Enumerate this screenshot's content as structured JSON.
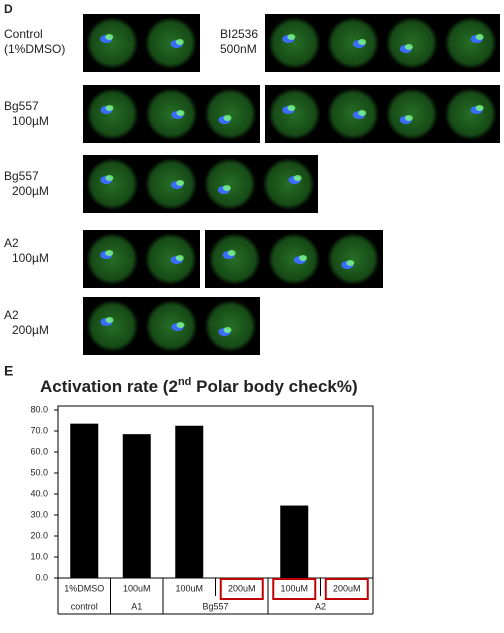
{
  "panel_d": {
    "label": "D",
    "rows": [
      {
        "label": [
          "Control",
          "(1%DMSO)"
        ]
      },
      {
        "label": [
          "BI2536",
          "500nM"
        ]
      },
      {
        "label": [
          "Bg557",
          "100µM"
        ]
      },
      {
        "label": [
          "Bg557",
          "200µM"
        ]
      },
      {
        "label": [
          "A2",
          "100µM"
        ]
      },
      {
        "label": [
          "A2",
          "200µM"
        ]
      }
    ]
  },
  "chart_data": {
    "type": "bar",
    "panel_label": "E",
    "title": [
      "Activation rate (2",
      "nd",
      " Polar body check%)"
    ],
    "categories": [
      "1%DMSO",
      "100uM",
      "100uM",
      "200uM",
      "100uM",
      "200uM"
    ],
    "groups": [
      "control",
      "A1",
      "Bg557",
      "Bg557",
      "A2",
      "A2"
    ],
    "values": [
      73.5,
      68.5,
      72.5,
      0,
      34.5,
      0
    ],
    "color": "#000000",
    "highlighted": [
      false,
      false,
      false,
      true,
      true,
      true
    ],
    "highlight_color": "#c00000",
    "ylim": [
      0,
      80
    ],
    "yticks": [
      {
        "value": 0,
        "label": "0.0"
      },
      {
        "value": 10,
        "label": "10.0"
      },
      {
        "value": 20,
        "label": "20.0"
      },
      {
        "value": 30,
        "label": "30.0"
      },
      {
        "value": 40,
        "label": "40.0"
      },
      {
        "value": 50,
        "label": "50.0"
      },
      {
        "value": 60,
        "label": "60.0"
      },
      {
        "value": 70,
        "label": "70.0"
      },
      {
        "value": 80,
        "label": "80.0"
      }
    ],
    "grid": false
  }
}
